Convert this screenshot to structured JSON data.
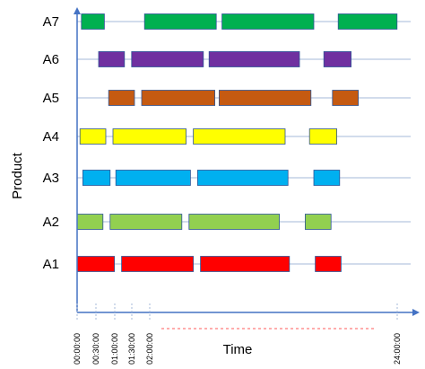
{
  "chart_data": {
    "type": "gantt",
    "title": "",
    "xlabel": "Time",
    "ylabel": "Product",
    "x_tick_labels": [
      "00:00:00",
      "00:30:00",
      "01:00:00",
      "01:30:00",
      "02:00:00",
      "24:00:00"
    ],
    "x_axis_note": "axis break (dashed) between 02:00:00 and 24:00:00",
    "grid": "horizontal lines at each product",
    "series": [
      {
        "name": "A7",
        "color": "#00b050",
        "bars": [
          [
            0.03,
            0.19
          ],
          [
            0.47,
            0.97
          ],
          [
            1.01,
            1.65
          ],
          [
            1.82,
            2.23
          ]
        ]
      },
      {
        "name": "A6",
        "color": "#7030a0",
        "bars": [
          [
            0.15,
            0.33
          ],
          [
            0.38,
            0.88
          ],
          [
            0.92,
            1.55
          ],
          [
            1.72,
            1.91
          ]
        ]
      },
      {
        "name": "A5",
        "color": "#c55a11",
        "bars": [
          [
            0.22,
            0.4
          ],
          [
            0.45,
            0.96
          ],
          [
            0.99,
            1.63
          ],
          [
            1.78,
            1.96
          ]
        ]
      },
      {
        "name": "A4",
        "color": "#ffff00",
        "bars": [
          [
            0.02,
            0.2
          ],
          [
            0.25,
            0.76
          ],
          [
            0.81,
            1.45
          ],
          [
            1.62,
            1.81
          ]
        ]
      },
      {
        "name": "A3",
        "color": "#00b0f0",
        "bars": [
          [
            0.04,
            0.23
          ],
          [
            0.27,
            0.79
          ],
          [
            0.84,
            1.47
          ],
          [
            1.65,
            1.83
          ]
        ]
      },
      {
        "name": "A2",
        "color": "#92d050",
        "bars": [
          [
            0.0,
            0.18
          ],
          [
            0.23,
            0.73
          ],
          [
            0.78,
            1.41
          ],
          [
            1.59,
            1.77
          ]
        ]
      },
      {
        "name": "A1",
        "color": "#ff0000",
        "bars": [
          [
            0.0,
            0.26
          ],
          [
            0.31,
            0.81
          ],
          [
            0.86,
            1.48
          ],
          [
            1.66,
            1.84
          ]
        ]
      }
    ],
    "colors": {
      "axis": "#4472c4",
      "grid": "#a6b8d8",
      "bar_border": "#2f5597",
      "break_line": "#ff5b5b"
    }
  }
}
